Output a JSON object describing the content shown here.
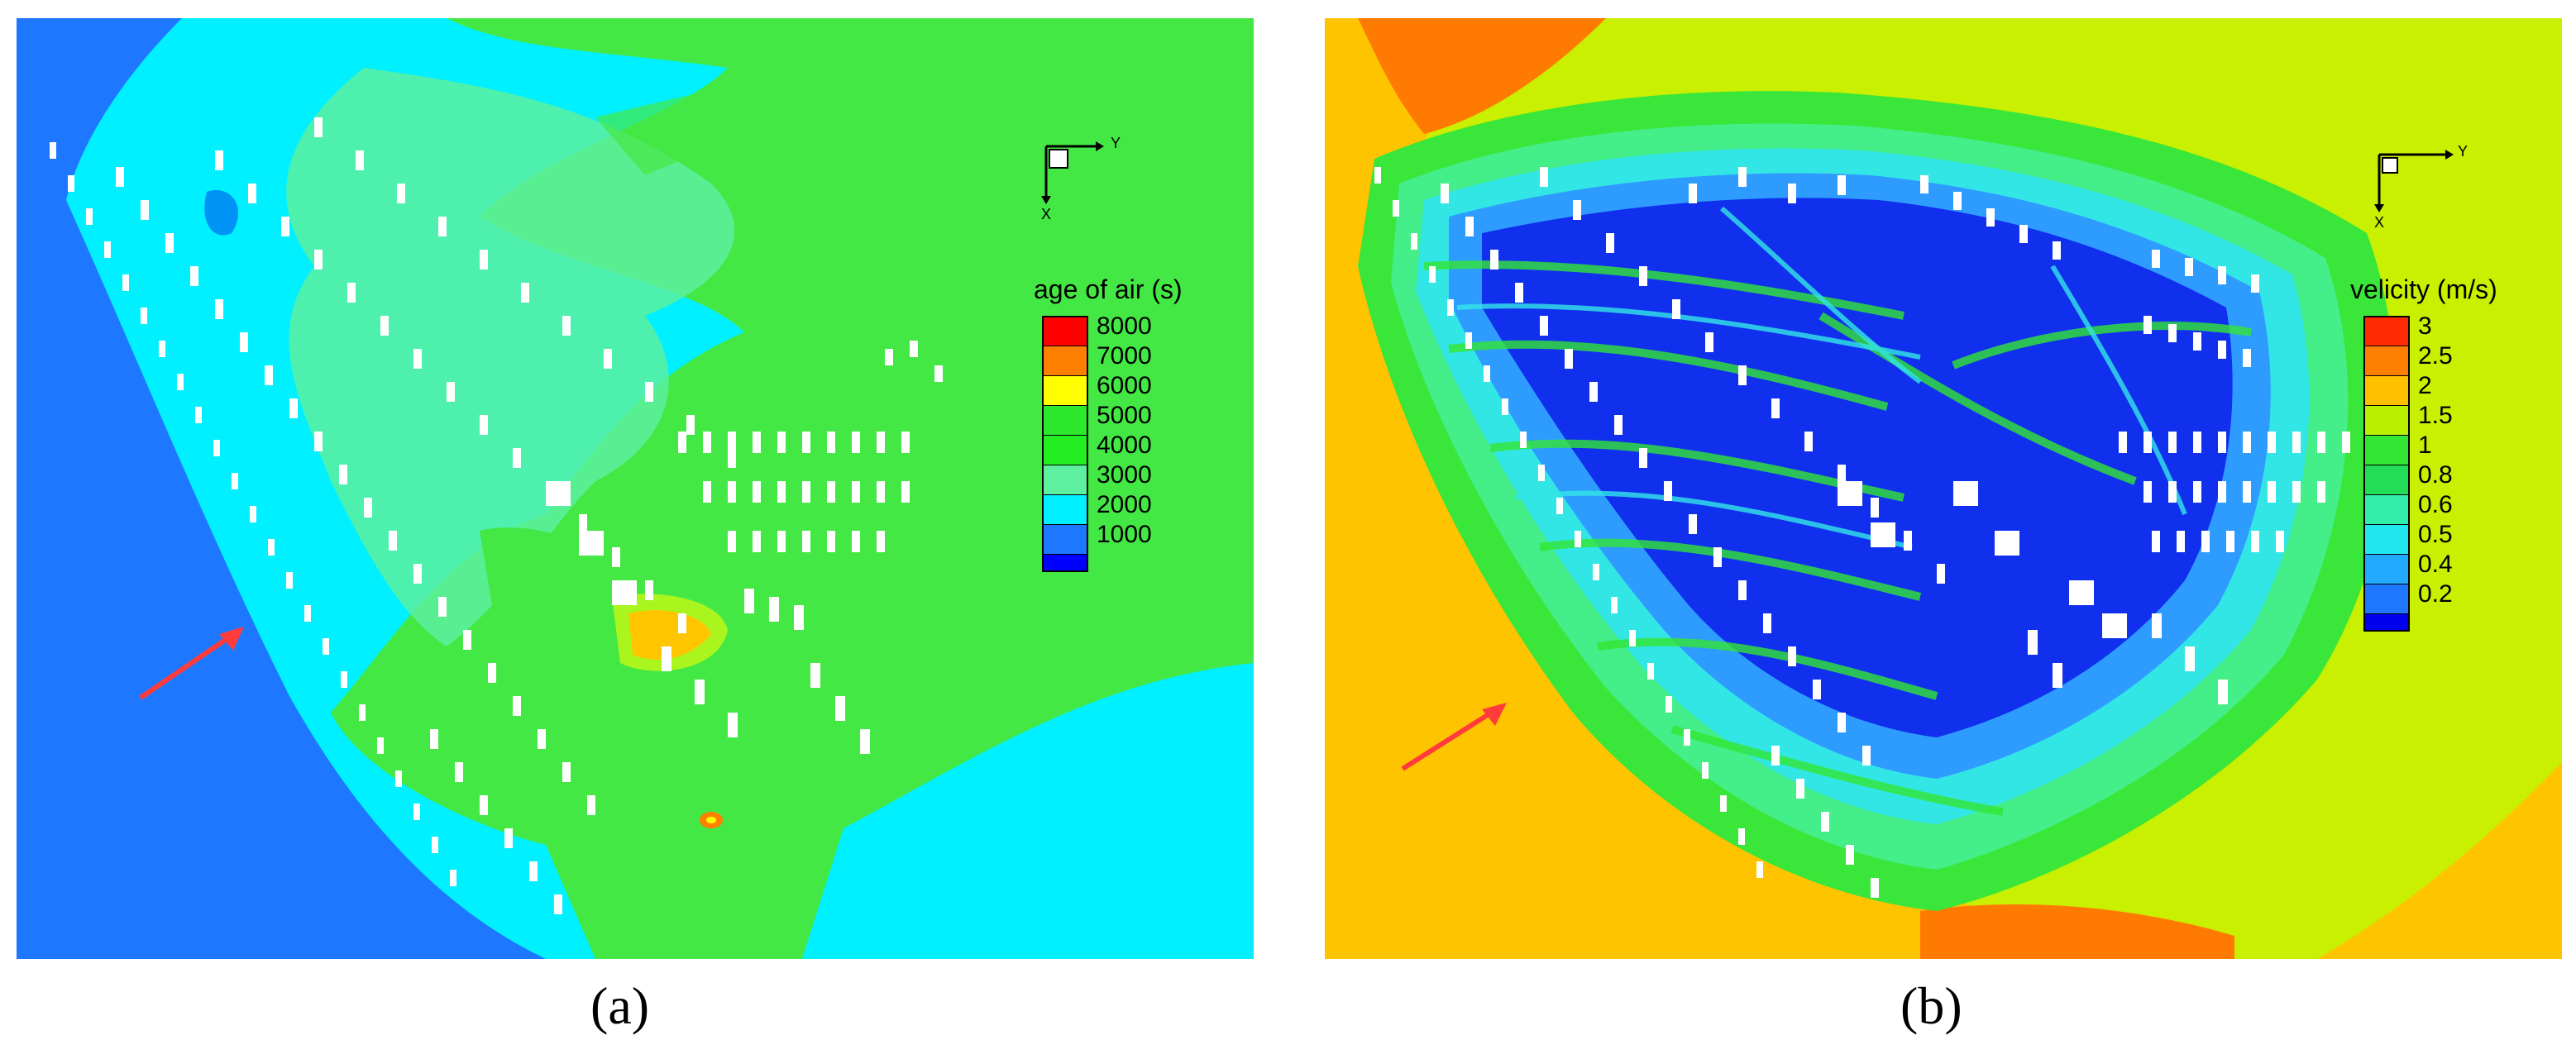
{
  "panels": [
    {
      "id": "a",
      "caption": "(a)",
      "legend": {
        "title": "age of air (s)",
        "levels": [
          {
            "label": "8000",
            "color": "#ff0000"
          },
          {
            "label": "7000",
            "color": "#ff8000"
          },
          {
            "label": "6000",
            "color": "#ffff00"
          },
          {
            "label": "5000",
            "color": "#2ee82e"
          },
          {
            "label": "4000",
            "color": "#22ee22"
          },
          {
            "label": "3000",
            "color": "#5cf0a0"
          },
          {
            "label": "2000",
            "color": "#00f0ff"
          },
          {
            "label": "1000",
            "color": "#1e78ff"
          }
        ],
        "bottom_color": "#0000ff"
      },
      "axis": {
        "x": "X",
        "y": "Y"
      },
      "colors": {
        "sea_left": "#1e78ff",
        "cyan": "#00f0ff",
        "mid_green": "#60f0a0",
        "green": "#44e844"
      }
    },
    {
      "id": "b",
      "caption": "(b)",
      "legend": {
        "title": "velicity (m/s)",
        "levels": [
          {
            "label": "3",
            "color": "#ff2a00"
          },
          {
            "label": "2.5",
            "color": "#ff8000"
          },
          {
            "label": "2",
            "color": "#ffc000"
          },
          {
            "label": "1.5",
            "color": "#b8f000"
          },
          {
            "label": "1",
            "color": "#33e633"
          },
          {
            "label": "0.8",
            "color": "#22dd55"
          },
          {
            "label": "0.6",
            "color": "#33eeaa"
          },
          {
            "label": "0.5",
            "color": "#22e6ee"
          },
          {
            "label": "0.4",
            "color": "#22aaff"
          },
          {
            "label": "0.2",
            "color": "#1e78ff"
          }
        ],
        "bottom_color": "#0000ee"
      },
      "axis": {
        "x": "X",
        "y": "Y"
      },
      "colors": {
        "orange": "#ff7a00",
        "yellow_orange": "#ffc400",
        "yellow_green": "#c8f000",
        "green": "#3ae63a",
        "light_green": "#44ee88",
        "cyan": "#33e6e6",
        "light_blue": "#2e9cff",
        "blue": "#1030ee"
      }
    }
  ]
}
